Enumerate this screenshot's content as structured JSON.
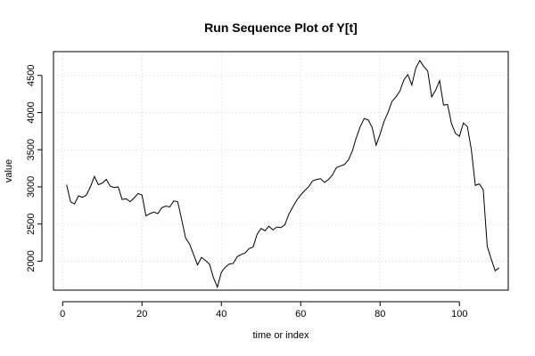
{
  "chart_data": {
    "type": "line",
    "title": "Run Sequence Plot of Y[t]",
    "xlabel": "time or index",
    "ylabel": "value",
    "xlim": [
      -2.3,
      112.3
    ],
    "ylim": [
      1610,
      4820
    ],
    "xticks": [
      0,
      20,
      40,
      60,
      80,
      100
    ],
    "yticks": [
      2000,
      2500,
      3000,
      3500,
      4000,
      4500
    ],
    "grid": true,
    "series": [
      {
        "values": [
          3030,
          2800,
          2770,
          2880,
          2860,
          2890,
          3000,
          3140,
          3030,
          3050,
          3100,
          3010,
          2990,
          3000,
          2830,
          2840,
          2800,
          2850,
          2910,
          2890,
          2610,
          2640,
          2660,
          2640,
          2720,
          2740,
          2730,
          2810,
          2800,
          2560,
          2310,
          2230,
          2090,
          1950,
          2050,
          2010,
          1960,
          1780,
          1650,
          1850,
          1920,
          1960,
          1970,
          2060,
          2090,
          2110,
          2170,
          2190,
          2360,
          2440,
          2410,
          2470,
          2420,
          2460,
          2450,
          2490,
          2630,
          2730,
          2820,
          2890,
          2950,
          3000,
          3080,
          3100,
          3110,
          3060,
          3100,
          3160,
          3260,
          3280,
          3300,
          3360,
          3480,
          3660,
          3810,
          3920,
          3900,
          3800,
          3560,
          3710,
          3880,
          4000,
          4150,
          4210,
          4290,
          4440,
          4510,
          4370,
          4600,
          4700,
          4620,
          4560,
          4210,
          4300,
          4430,
          4100,
          4110,
          3850,
          3720,
          3680,
          3860,
          3810,
          3500,
          3020,
          3040,
          2960,
          2200,
          2030,
          1870,
          1910
        ]
      }
    ]
  }
}
